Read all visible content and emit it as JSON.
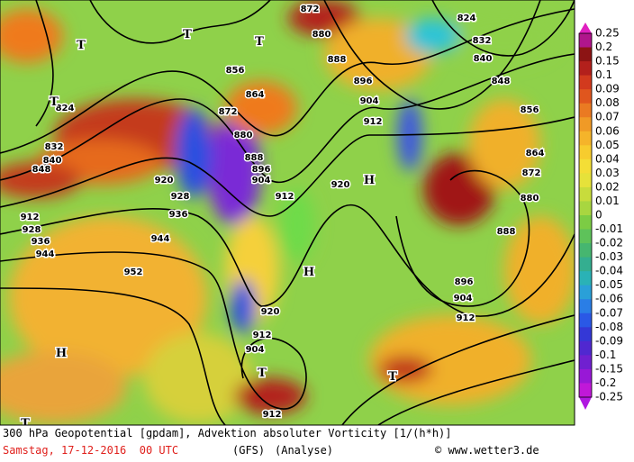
{
  "map": {
    "contour_labels": [
      "824",
      "832",
      "840",
      "848",
      "856",
      "864",
      "872",
      "880",
      "888",
      "896",
      "904",
      "912",
      "872",
      "880",
      "888",
      "896",
      "904",
      "912",
      "856",
      "864",
      "872",
      "880",
      "888",
      "896",
      "904",
      "912",
      "920",
      "920",
      "928",
      "936",
      "944",
      "952",
      "824",
      "832",
      "840",
      "848",
      "912",
      "928",
      "936",
      "944",
      "920",
      "912",
      "904",
      "912"
    ],
    "pressure_centers": [
      "T",
      "T",
      "T",
      "T",
      "H",
      "H",
      "H",
      "T",
      "T",
      "T"
    ]
  },
  "colorbar": {
    "labels": [
      "0.25",
      "0.2",
      "0.15",
      "0.1",
      "0.09",
      "0.08",
      "0.07",
      "0.06",
      "0.05",
      "0.04",
      "0.03",
      "0.02",
      "0.01",
      "0",
      "-0.01",
      "-0.02",
      "-0.03",
      "-0.04",
      "-0.05",
      "-0.06",
      "-0.07",
      "-0.08",
      "-0.09",
      "-0.1",
      "-0.15",
      "-0.2",
      "-0.25"
    ]
  },
  "footer": {
    "line1": "300 hPa Geopotential [gpdam], Advektion absoluter Vorticity [1/(h*h)]",
    "date": "Samstag, 17-12-2016  00 UTC",
    "model": "(GFS)",
    "run": "(Analyse)",
    "credit": "© www.wetter3.de"
  }
}
